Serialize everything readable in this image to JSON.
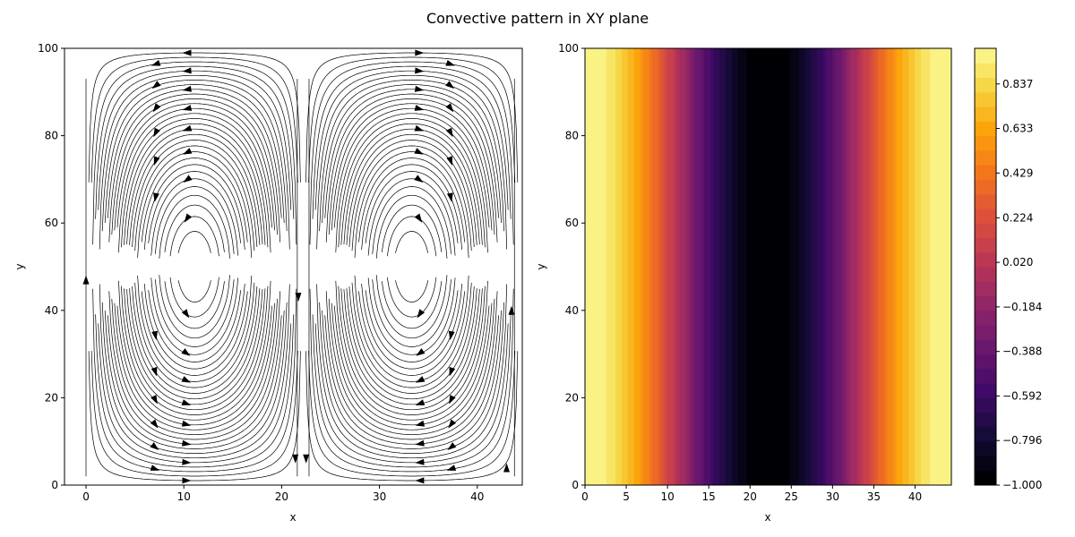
{
  "figure": {
    "title": "Convective pattern in XY plane"
  },
  "chart_data": [
    {
      "type": "streamplot",
      "xlabel": "x",
      "ylabel": "y",
      "xlim": [
        -2.2,
        44.6
      ],
      "ylim": [
        0,
        100
      ],
      "xticks": [
        0,
        10,
        20,
        30,
        40
      ],
      "yticks": [
        0,
        20,
        40,
        60,
        80,
        100
      ],
      "line_color": "#000000",
      "field": {
        "period_x": 44.4,
        "description_pattern": "two counter-rotating convection rolls: upflow near x=0 and x=44, downflow near x=22"
      },
      "arrows": [
        {
          "x": 0.0,
          "y": 47.0,
          "dir": "up"
        },
        {
          "x": 21.7,
          "y": 43.0,
          "dir": "down"
        },
        {
          "x": 43.5,
          "y": 40.0,
          "dir": "up"
        },
        {
          "x": 21.4,
          "y": 6.0,
          "dir": "down"
        },
        {
          "x": 22.5,
          "y": 6.0,
          "dir": "down"
        },
        {
          "x": 43.0,
          "y": 4.0,
          "dir": "up"
        }
      ]
    },
    {
      "type": "heatmap",
      "xlabel": "x",
      "ylabel": "y",
      "xlim": [
        0,
        44.4
      ],
      "ylim": [
        0,
        100
      ],
      "xticks": [
        0,
        5,
        10,
        15,
        20,
        25,
        30,
        35,
        40
      ],
      "yticks": [
        0,
        20,
        40,
        60,
        80,
        100
      ],
      "colormap": "inferno",
      "levels": 30,
      "value_function": "cos(2*pi*x/44.4), constant in y",
      "colorbar": {
        "range": [
          -1.0,
          1.0
        ],
        "tick_labels": [
          "−1.000",
          "−0.796",
          "−0.592",
          "−0.388",
          "−0.184",
          "0.020",
          "0.224",
          "0.429",
          "0.633",
          "0.837"
        ],
        "tick_values": [
          -1.0,
          -0.796,
          -0.592,
          -0.388,
          -0.184,
          0.02,
          0.224,
          0.429,
          0.633,
          0.837
        ]
      }
    }
  ]
}
